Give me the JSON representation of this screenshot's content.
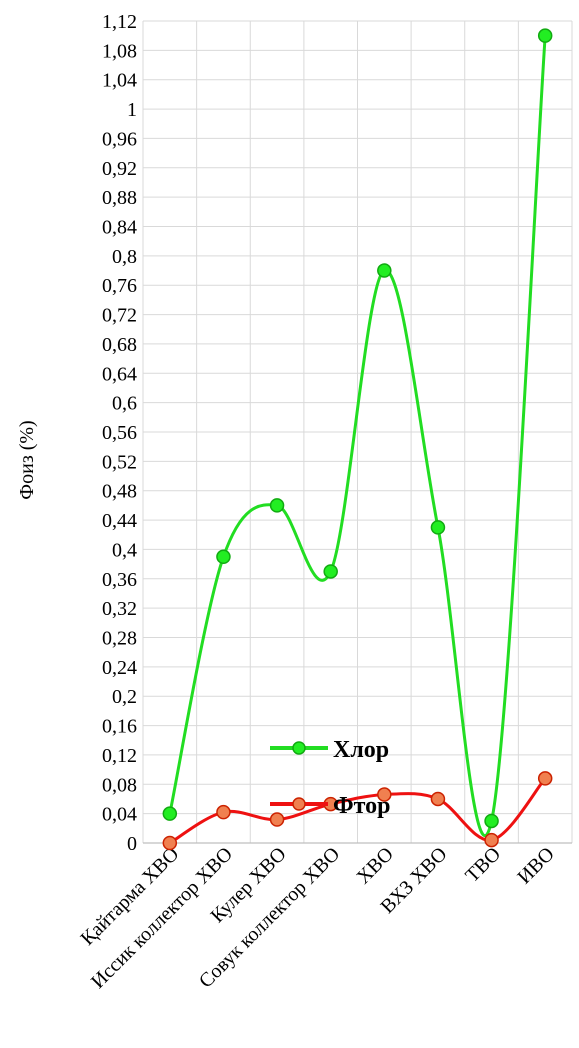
{
  "chart_data": {
    "type": "line",
    "ylabel": "Фоиз (%)",
    "ylim": [
      0,
      1.12
    ],
    "ytick_step": 0.04,
    "smooth": true,
    "grid": true,
    "categories": [
      "Қайтарма ХВО",
      "Иссик коллектор ХВО",
      "Кулер ХВО",
      "Совук коллектор ХВО",
      "ХВО",
      "ВХЗ ХВО",
      "ТВО",
      "ИВО"
    ],
    "series": [
      {
        "name": "Хлор",
        "color": "#22dd22",
        "marker_color": "#22ee22",
        "marker_edge": "#11aa11",
        "values": [
          0.04,
          0.39,
          0.46,
          0.37,
          0.78,
          0.43,
          0.03,
          1.1
        ]
      },
      {
        "name": "Фтор",
        "color": "#ee1111",
        "marker_color": "#f08050",
        "marker_edge": "#cc2200",
        "values": [
          0.0,
          0.042,
          0.032,
          0.053,
          0.066,
          0.06,
          0.004,
          0.088
        ]
      }
    ],
    "legend_position": "inside-bottom-center"
  }
}
